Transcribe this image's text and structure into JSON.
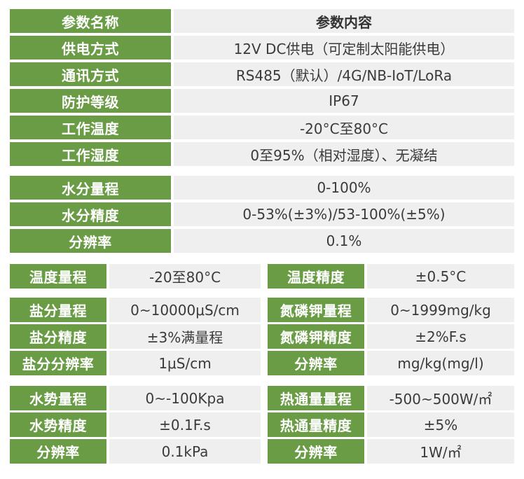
{
  "top_table": {
    "header": {
      "name": "参数名称",
      "content": "参数内容"
    },
    "rows": [
      {
        "label": "供电方式",
        "value": "12V DC供电（可定制太阳能供电）"
      },
      {
        "label": "通讯方式",
        "value": "RS485（默认）/4G/NB-IoT/LoRa"
      },
      {
        "label": "防护等级",
        "value": "IP67"
      },
      {
        "label": "工作温度",
        "value": "-20°C至80°C"
      },
      {
        "label": "工作湿度",
        "value": "0至95%（相对湿度）、无凝结"
      }
    ]
  },
  "moisture_table": {
    "rows": [
      {
        "label": "水分量程",
        "value": "0-100%"
      },
      {
        "label": "水分精度",
        "value": "0-53%(±3%)/53-100%(±5%)"
      },
      {
        "label": "分辨率",
        "value": "0.1%"
      }
    ]
  },
  "grid_table": {
    "groups": [
      {
        "left": [
          {
            "label": "温度量程",
            "value": "-20至80°C"
          }
        ],
        "right": [
          {
            "label": "温度精度",
            "value": "±0.5°C"
          }
        ]
      },
      {
        "left": [
          {
            "label": "盐分量程",
            "value": "0~10000μS/cm"
          },
          {
            "label": "盐分精度",
            "value": "±3%满量程"
          },
          {
            "label": "盐分分辨率",
            "value": "1μS/cm"
          }
        ],
        "right": [
          {
            "label": "氮磷钾量程",
            "value": "0~1999mg/kg"
          },
          {
            "label": "氮磷钾精度",
            "value": "±2%F.s"
          },
          {
            "label": "分辨率",
            "value": "mg/kg(mg/l)"
          }
        ]
      },
      {
        "left": [
          {
            "label": "水势量程",
            "value": "0~-100Kpa"
          },
          {
            "label": "水势精度",
            "value": "±0.1F.s"
          },
          {
            "label": "分辨率",
            "value": "0.1kPa"
          }
        ],
        "right": [
          {
            "label": "热通量量程",
            "value": "-500~500W/㎡"
          },
          {
            "label": "热通量精度",
            "value": "±5%"
          },
          {
            "label": "分辨率",
            "value": "1W/㎡"
          }
        ]
      }
    ]
  },
  "colors": {
    "label_bg": "#6a9c46",
    "label_text": "#ffffff",
    "value_bg": "#efefef",
    "value_text": "#3a3a3a"
  }
}
